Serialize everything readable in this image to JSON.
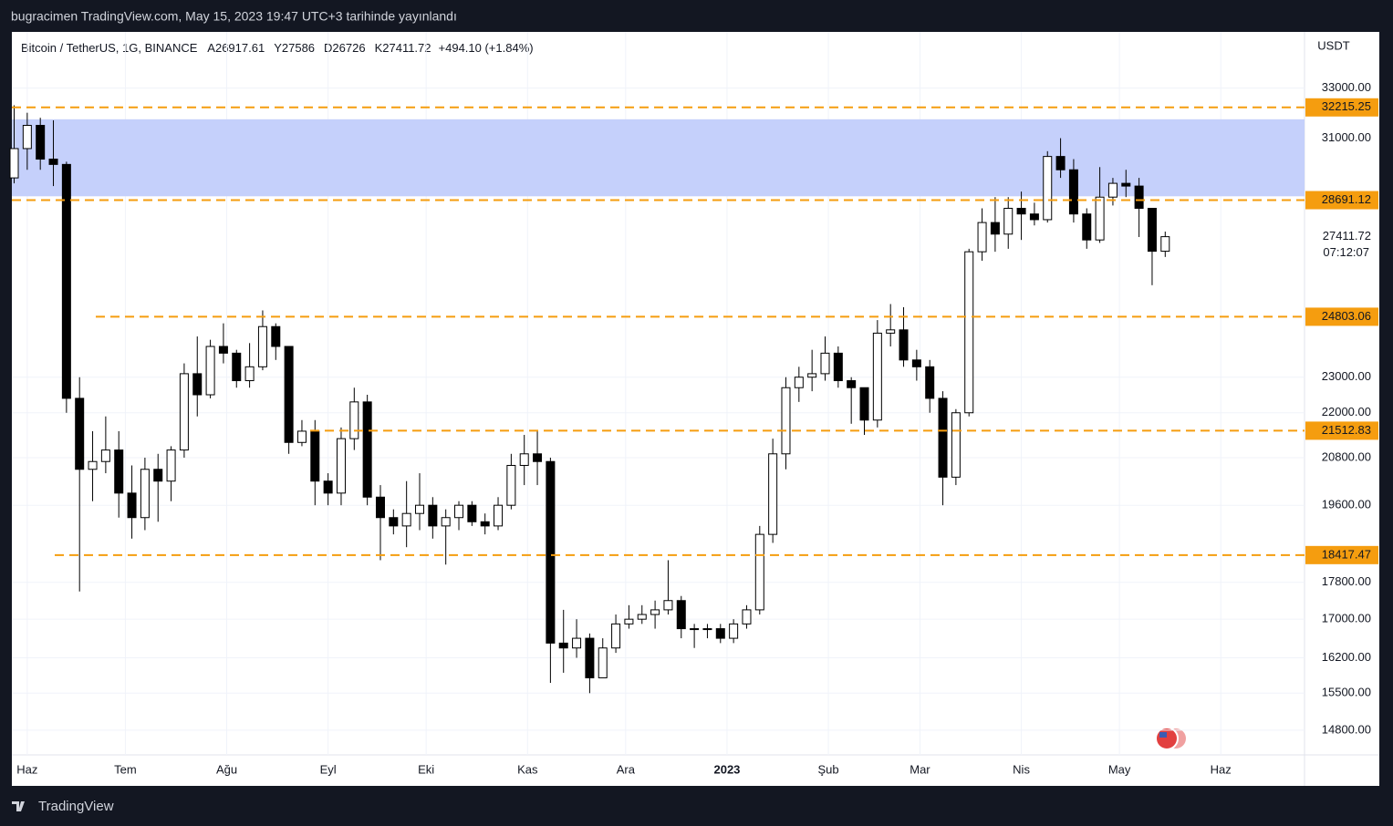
{
  "header": {
    "publisher": "bugracimen TradingView.com, May 15, 2023 19:47 UTC+3 tarihinde yayınlandı"
  },
  "footer": {
    "brand": "TradingView"
  },
  "chart_data": {
    "type": "candlestick",
    "symbol": "Bitcoin / TetherUS, 1G, BINANCE",
    "legend": [
      {
        "prefix": "A",
        "value": 26917.61
      },
      {
        "prefix": "Y",
        "value": 27586.0
      },
      {
        "prefix": "D",
        "value": 26726.0
      },
      {
        "prefix": "K",
        "value": 27411.72
      }
    ],
    "change": "+494.10 (+1.84%)",
    "currency": "USDT",
    "log_scale": true,
    "color": "#000000",
    "ylim": [
      14350,
      35400
    ],
    "yticks": [
      {
        "value": 33000,
        "label": "33000.00"
      },
      {
        "value": 31000,
        "label": "31000.00"
      },
      {
        "value": 23000,
        "label": "23000.00"
      },
      {
        "value": 22000,
        "label": "22000.00"
      },
      {
        "value": 20800,
        "label": "20800.00"
      },
      {
        "value": 19600,
        "label": "19600.00"
      },
      {
        "value": 17800,
        "label": "17800.00"
      },
      {
        "value": 17000,
        "label": "17000.00"
      },
      {
        "value": 16200,
        "label": "16200.00"
      },
      {
        "value": 15500,
        "label": "15500.00"
      },
      {
        "value": 14800,
        "label": "14800.00"
      }
    ],
    "xlim": [
      -4.7,
      390.6
    ],
    "xticks": [
      {
        "value": 0,
        "label": "Haz"
      },
      {
        "value": 30,
        "label": "Tem"
      },
      {
        "value": 61,
        "label": "Ağu"
      },
      {
        "value": 92,
        "label": "Eyl"
      },
      {
        "value": 122,
        "label": "Eki"
      },
      {
        "value": 153,
        "label": "Kas"
      },
      {
        "value": 183,
        "label": "Ara"
      },
      {
        "value": 214,
        "label": "2023"
      },
      {
        "value": 245,
        "label": "Şub"
      },
      {
        "value": 273,
        "label": "Mar"
      },
      {
        "value": 304,
        "label": "Nis"
      },
      {
        "value": 334,
        "label": "May"
      },
      {
        "value": 365,
        "label": "Haz"
      }
    ],
    "zone": {
      "color": "#c2cdfb",
      "range": [
        28830,
        31740
      ]
    },
    "levels": {
      "color": "#f59d0f",
      "values": [
        32215.25,
        28691.12,
        24803.06,
        21512.83,
        18417.47
      ]
    },
    "last_price": 27411.72,
    "countdown": "07:12:07",
    "candles": {
      "x": [
        -4,
        0,
        4,
        8,
        12,
        16,
        20,
        24,
        28,
        32,
        36,
        40,
        44,
        48,
        52,
        56,
        60,
        64,
        68,
        72,
        76,
        80,
        84,
        88,
        92,
        96,
        100,
        104,
        108,
        112,
        116,
        120,
        124,
        128,
        132,
        136,
        140,
        144,
        148,
        152,
        156,
        160,
        164,
        168,
        172,
        176,
        180,
        184,
        188,
        192,
        196,
        200,
        204,
        208,
        212,
        216,
        220,
        224,
        228,
        232,
        236,
        240,
        244,
        248,
        252,
        256,
        260,
        264,
        268,
        272,
        276,
        280,
        284,
        288,
        292,
        296,
        300,
        304,
        308,
        312,
        316,
        320,
        324,
        328,
        332,
        336,
        340,
        344,
        348
      ],
      "open": [
        29500,
        30600,
        31500,
        30200,
        30000,
        22400,
        20500,
        20700,
        21000,
        19900,
        19300,
        20500,
        20200,
        21000,
        23100,
        22500,
        23900,
        23700,
        22900,
        23300,
        24500,
        23900,
        21200,
        21500,
        20200,
        19900,
        21300,
        22300,
        19800,
        19300,
        19100,
        19400,
        19600,
        19100,
        19300,
        19600,
        19200,
        19100,
        19600,
        20600,
        20900,
        20700,
        16500,
        16400,
        16600,
        15800,
        16400,
        16900,
        17000,
        17100,
        17200,
        17400,
        16800,
        16800,
        16800,
        16600,
        16900,
        17200,
        18900,
        20900,
        22700,
        23000,
        23100,
        23700,
        22900,
        22700,
        21800,
        24300,
        24400,
        23500,
        23300,
        22400,
        20300,
        22000,
        26900,
        27900,
        27500,
        28400,
        28200,
        28000,
        30300,
        29800,
        28200,
        27300,
        28800,
        29300,
        29200,
        28400,
        26917.61
      ],
      "high": [
        32300,
        32000,
        31800,
        31700,
        30100,
        23000,
        21500,
        21900,
        21500,
        20600,
        20800,
        20900,
        21100,
        23400,
        24200,
        24100,
        24600,
        23800,
        24000,
        25000,
        24600,
        23900,
        21800,
        21800,
        20400,
        21600,
        22700,
        22500,
        20100,
        19500,
        20200,
        20400,
        19800,
        19500,
        19700,
        19700,
        19400,
        19800,
        20900,
        21400,
        21500,
        20800,
        17200,
        17000,
        16700,
        16600,
        17100,
        17300,
        17300,
        17400,
        18300,
        17500,
        16900,
        16900,
        16900,
        17000,
        17300,
        19100,
        21300,
        23000,
        23300,
        23800,
        24200,
        23900,
        23000,
        22000,
        24700,
        25200,
        25100,
        23800,
        23500,
        22600,
        22100,
        27000,
        28400,
        28800,
        28800,
        29000,
        28600,
        30500,
        31000,
        30200,
        28400,
        29900,
        29500,
        29800,
        29500,
        28100,
        27586.0
      ],
      "low": [
        29300,
        29800,
        29800,
        29200,
        22000,
        17600,
        19700,
        20400,
        19300,
        18800,
        19000,
        19200,
        19700,
        20800,
        21900,
        22400,
        23400,
        22700,
        22700,
        23200,
        23500,
        20900,
        21100,
        19600,
        19600,
        19600,
        21000,
        19600,
        18300,
        18900,
        18600,
        19000,
        18800,
        18200,
        19000,
        19100,
        18900,
        19000,
        19500,
        20100,
        20100,
        15700,
        15900,
        16200,
        15500,
        15800,
        16300,
        16800,
        16900,
        16800,
        17100,
        16600,
        16400,
        16600,
        16500,
        16500,
        16800,
        17100,
        18700,
        20500,
        22300,
        22600,
        22900,
        22700,
        21700,
        21400,
        21600,
        23900,
        23300,
        22900,
        22000,
        19600,
        20100,
        21900,
        26600,
        26900,
        27000,
        27300,
        27800,
        27900,
        29500,
        27900,
        27000,
        27200,
        28500,
        28800,
        27400,
        25800,
        26726.0
      ],
      "close": [
        30600,
        31500,
        30200,
        30000,
        22400,
        20500,
        20700,
        21000,
        19900,
        19300,
        20500,
        20200,
        21000,
        23100,
        22500,
        23900,
        23700,
        22900,
        23300,
        24500,
        23900,
        21200,
        21500,
        20200,
        19900,
        21300,
        22300,
        19800,
        19300,
        19100,
        19400,
        19600,
        19100,
        19300,
        19600,
        19200,
        19100,
        19600,
        20600,
        20900,
        20700,
        16500,
        16400,
        16600,
        15800,
        16400,
        16900,
        17000,
        17100,
        17200,
        17400,
        16800,
        16800,
        16800,
        16600,
        16900,
        17200,
        18900,
        20900,
        22700,
        23000,
        23100,
        23700,
        22900,
        22700,
        21800,
        24300,
        24400,
        23500,
        23300,
        22400,
        20300,
        22000,
        26900,
        27900,
        27500,
        28400,
        28200,
        28000,
        30300,
        29800,
        28200,
        27300,
        28800,
        29300,
        29200,
        28400,
        26917.61,
        27411.72
      ]
    }
  }
}
